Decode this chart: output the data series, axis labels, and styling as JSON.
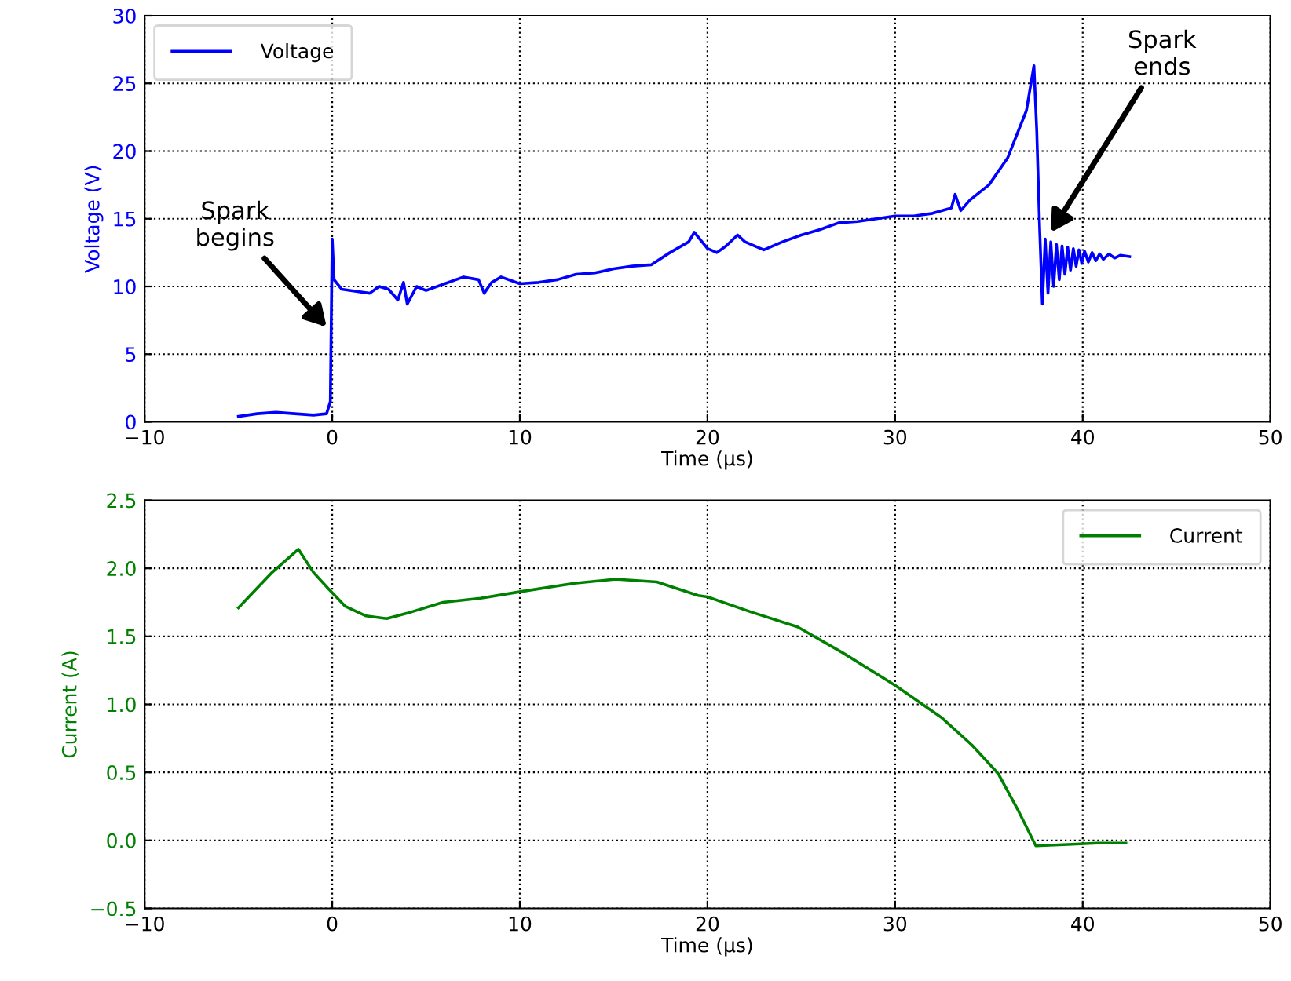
{
  "chart_data": [
    {
      "type": "line",
      "xlabel": "Time (μs)",
      "ylabel": "Voltage (V)",
      "xlim": [
        -10,
        50
      ],
      "ylim": [
        0,
        30
      ],
      "xticks": [
        {
          "value": -10,
          "label": "−10"
        },
        0,
        10,
        20,
        30,
        40,
        50
      ],
      "yticks": [
        0,
        5,
        10,
        15,
        20,
        25,
        30
      ],
      "grid": true,
      "legend": "top left",
      "line_style": "solid",
      "annotations": [
        {
          "text": "Spark\nbegins",
          "x": -0.3,
          "y": 7
        },
        {
          "text": "Spark\nends",
          "x": 38.3,
          "y": 14
        }
      ],
      "series": [
        {
          "name": "Voltage",
          "color": "#0000ff",
          "x": [
            -5,
            -4,
            -3,
            -2,
            -1,
            -0.3,
            -0.1,
            0,
            0.1,
            0.5,
            1,
            2,
            2.5,
            3,
            3.5,
            3.8,
            4,
            4.5,
            5,
            6,
            7,
            7.8,
            8.1,
            8.5,
            9,
            10,
            11,
            12,
            13,
            14,
            15,
            16,
            17,
            18,
            19,
            19.3,
            20,
            20.5,
            21,
            21.6,
            22,
            23,
            24,
            25,
            26,
            27,
            28,
            29,
            30,
            31,
            32,
            33,
            33.2,
            33.5,
            34,
            35,
            36,
            37,
            37.4,
            37.55,
            37.7,
            37.85,
            38.0,
            38.15,
            38.3,
            38.45,
            38.6,
            38.75,
            38.9,
            39.05,
            39.2,
            39.35,
            39.5,
            39.65,
            39.8,
            39.95,
            40.1,
            40.3,
            40.5,
            40.7,
            40.9,
            41.1,
            41.4,
            41.7,
            42.0,
            42.5
          ],
          "values": [
            0.4,
            0.6,
            0.7,
            0.6,
            0.5,
            0.6,
            1.5,
            13.5,
            10.5,
            9.8,
            9.7,
            9.5,
            10,
            9.8,
            9.0,
            10.3,
            8.7,
            10,
            9.7,
            10.2,
            10.7,
            10.5,
            9.5,
            10.3,
            10.7,
            10.2,
            10.3,
            10.5,
            10.9,
            11.0,
            11.3,
            11.5,
            11.6,
            12.5,
            13.3,
            14.0,
            12.8,
            12.5,
            13.0,
            13.8,
            13.3,
            12.7,
            13.3,
            13.8,
            14.2,
            14.7,
            14.8,
            15.0,
            15.2,
            15.2,
            15.4,
            15.8,
            16.8,
            15.6,
            16.4,
            17.5,
            19.5,
            23.0,
            26.3,
            21.5,
            14.5,
            8.7,
            13.5,
            9.5,
            13.3,
            10.0,
            13.1,
            10.5,
            13.0,
            10.9,
            12.9,
            11.2,
            12.8,
            11.5,
            12.7,
            11.7,
            12.6,
            11.8,
            12.5,
            11.9,
            12.4,
            12.0,
            12.4,
            12.1,
            12.3,
            12.2
          ]
        }
      ]
    },
    {
      "type": "line",
      "xlabel": "Time (μs)",
      "ylabel": "Current (A)",
      "xlim": [
        -10,
        50
      ],
      "ylim": [
        -0.5,
        2.5
      ],
      "xticks": [
        {
          "value": -10,
          "label": "−10"
        },
        0,
        10,
        20,
        30,
        40,
        50
      ],
      "yticks": [
        {
          "value": -0.5,
          "label": "−0.5"
        },
        {
          "value": 0,
          "label": "0.0"
        },
        0.5,
        {
          "value": 1,
          "label": "1.0"
        },
        1.5,
        {
          "value": 2,
          "label": "2.0"
        },
        2.5
      ],
      "grid": true,
      "legend": "top right",
      "line_style": "solid",
      "series": [
        {
          "name": "Current",
          "color": "#008000",
          "x": [
            -5.0,
            -3.2,
            -1.8,
            -1.0,
            -0.2,
            0.7,
            1.8,
            2.9,
            4.0,
            5.9,
            7.9,
            10.1,
            12.9,
            15.1,
            17.3,
            19.5,
            20,
            22.3,
            24.8,
            27.2,
            30,
            32.5,
            34.1,
            35.5,
            36.6,
            37.5,
            39.2,
            40.8,
            42.3
          ],
          "values": [
            1.71,
            1.97,
            2.14,
            1.97,
            1.85,
            1.72,
            1.65,
            1.63,
            1.67,
            1.75,
            1.78,
            1.83,
            1.89,
            1.92,
            1.9,
            1.8,
            1.79,
            1.68,
            1.57,
            1.38,
            1.14,
            0.9,
            0.7,
            0.49,
            0.21,
            -0.04,
            -0.03,
            -0.02,
            -0.02
          ]
        }
      ]
    }
  ]
}
